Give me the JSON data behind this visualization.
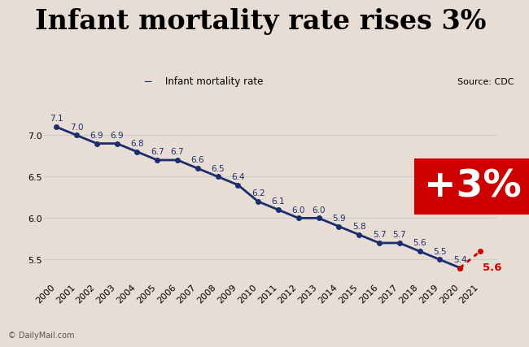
{
  "title": "Infant mortality rate rises 3%",
  "source": "Source: CDC",
  "legend_label": "Infant mortality rate",
  "watermark": "© DailyMail.com",
  "years": [
    2000,
    2001,
    2002,
    2003,
    2004,
    2005,
    2006,
    2007,
    2008,
    2009,
    2010,
    2011,
    2012,
    2013,
    2014,
    2015,
    2016,
    2017,
    2018,
    2019,
    2020,
    2021
  ],
  "values": [
    7.1,
    7.0,
    6.9,
    6.9,
    6.8,
    6.7,
    6.7,
    6.6,
    6.5,
    6.4,
    6.2,
    6.1,
    6.0,
    6.0,
    5.9,
    5.8,
    5.7,
    5.7,
    5.6,
    5.5,
    5.4,
    5.6
  ],
  "main_line_color": "#1a2e6e",
  "rise_line_color": "#cc0000",
  "annotation_box_color": "#cc0000",
  "annotation_text": "+3%",
  "ylim": [
    5.25,
    7.35
  ],
  "yticks": [
    5.5,
    6.0,
    6.5,
    7.0
  ],
  "bg_color": "#e8ddd5",
  "grid_color": "#cccccc",
  "title_fontsize": 24,
  "tick_fontsize": 8,
  "label_fontsize": 7.5
}
